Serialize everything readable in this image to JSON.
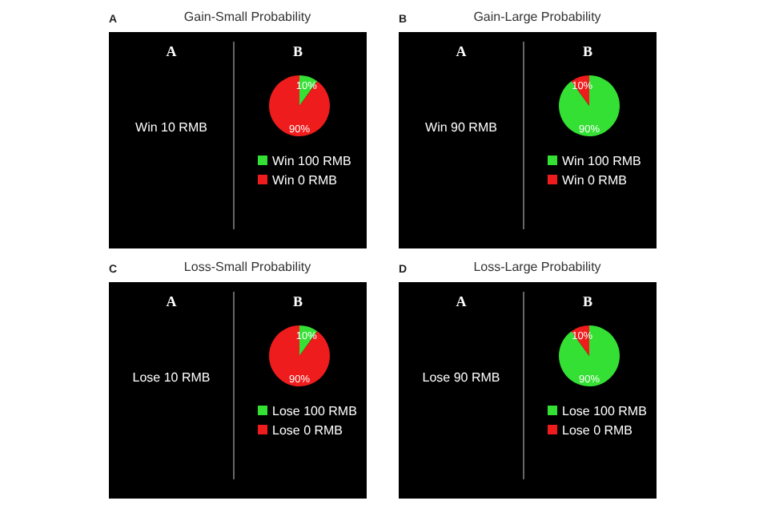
{
  "chart_data": [
    {
      "type": "pie",
      "title": "Gain-Small Probability",
      "annotations": [
        "A",
        "A",
        "B",
        "Win 10 RMB"
      ],
      "categories": [
        "Win 100 RMB",
        "Win 0 RMB"
      ],
      "values": [
        10,
        90
      ],
      "value_labels": [
        "10%",
        "90%"
      ],
      "colors": [
        "#33e033",
        "#ee1c1c"
      ],
      "legend": "bottom"
    },
    {
      "type": "pie",
      "title": "Gain-Large Probability",
      "annotations": [
        "B",
        "A",
        "B",
        "Win 90 RMB"
      ],
      "categories": [
        "Win 100 RMB",
        "Win 0 RMB"
      ],
      "values": [
        90,
        10
      ],
      "value_labels": [
        "90%",
        "10%"
      ],
      "colors": [
        "#33e033",
        "#ee1c1c"
      ],
      "legend": "bottom"
    },
    {
      "type": "pie",
      "title": "Loss-Small Probability",
      "annotations": [
        "C",
        "A",
        "B",
        "Lose 10 RMB"
      ],
      "categories": [
        "Lose 100 RMB",
        "Lose 0 RMB"
      ],
      "values": [
        10,
        90
      ],
      "value_labels": [
        "10%",
        "90%"
      ],
      "colors": [
        "#33e033",
        "#ee1c1c"
      ],
      "legend": "bottom"
    },
    {
      "type": "pie",
      "title": "Loss-Large Probability",
      "annotations": [
        "D",
        "A",
        "B",
        "Lose 90 RMB"
      ],
      "categories": [
        "Lose 100 RMB",
        "Lose 0 RMB"
      ],
      "values": [
        90,
        10
      ],
      "value_labels": [
        "90%",
        "10%"
      ],
      "colors": [
        "#33e033",
        "#ee1c1c"
      ],
      "legend": "bottom"
    }
  ]
}
